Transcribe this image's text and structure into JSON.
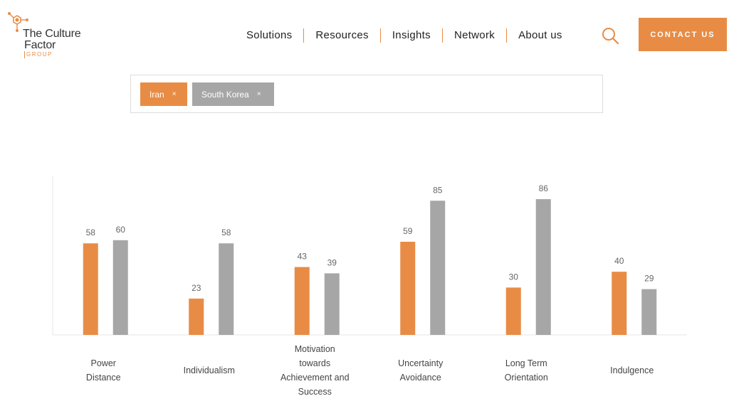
{
  "logo": {
    "line1": "The Culture",
    "line2": "Factor",
    "line3": "GROUP"
  },
  "nav": {
    "items": [
      "Solutions",
      "Resources",
      "Insights",
      "Network",
      "About us"
    ]
  },
  "search": {
    "icon": "search-icon"
  },
  "contact_label": "CONTACT US",
  "filters": [
    {
      "label": "Iran",
      "remove": "×",
      "color": "#e88c45"
    },
    {
      "label": "South Korea",
      "remove": "×",
      "color": "#a6a6a6"
    }
  ],
  "colors": {
    "accent": "#e88c45",
    "secondary": "#a6a6a6",
    "text": "#333333"
  },
  "chart_data": {
    "type": "bar",
    "categories": [
      [
        "Power",
        "Distance"
      ],
      [
        "Individualism"
      ],
      [
        "Motivation",
        "towards",
        "Achievement and",
        "Success"
      ],
      [
        "Uncertainty",
        "Avoidance"
      ],
      [
        "Long Term",
        "Orientation"
      ],
      [
        "Indulgence"
      ]
    ],
    "series": [
      {
        "name": "Iran",
        "color": "#e88c45",
        "values": [
          58,
          23,
          43,
          59,
          30,
          40
        ]
      },
      {
        "name": "South Korea",
        "color": "#a6a6a6",
        "values": [
          60,
          58,
          39,
          85,
          86,
          29
        ]
      }
    ],
    "ylim": [
      0,
      100
    ],
    "grid": false,
    "legend": "none",
    "title": "",
    "xlabel": "",
    "ylabel": ""
  }
}
